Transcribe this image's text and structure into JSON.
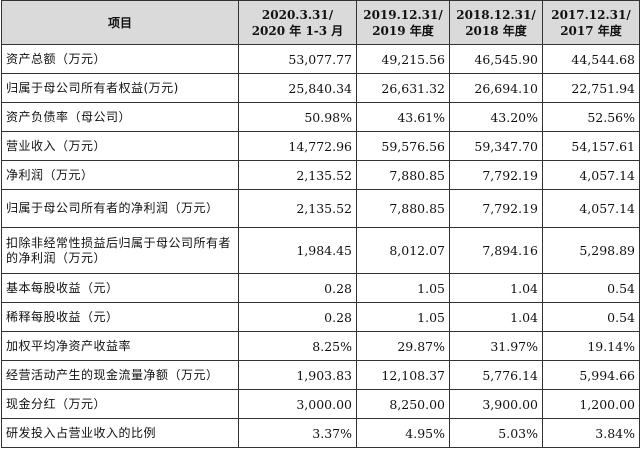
{
  "table": {
    "headers": [
      [
        "项目"
      ],
      [
        "2020.3.31/",
        "2020 年 1-3 月"
      ],
      [
        "2019.12.31/",
        "2019 年度"
      ],
      [
        "2018.12.31/",
        "2018 年度"
      ],
      [
        "2017.12.31/",
        "2017 年度"
      ]
    ],
    "rows": [
      {
        "label": "资产总额（万元）",
        "values": [
          "53,077.77",
          "49,215.56",
          "46,545.90",
          "44,544.68"
        ]
      },
      {
        "label": "归属于母公司所有者权益(万元)",
        "values": [
          "25,840.34",
          "26,631.32",
          "26,694.10",
          "22,751.94"
        ]
      },
      {
        "label": "资产负债率（母公司）",
        "values": [
          "50.98%",
          "43.61%",
          "43.20%",
          "52.56%"
        ]
      },
      {
        "label": "营业收入（万元）",
        "values": [
          "14,772.96",
          "59,576.56",
          "59,347.70",
          "54,157.61"
        ]
      },
      {
        "label": "净利润（万元）",
        "values": [
          "2,135.52",
          "7,880.85",
          "7,792.19",
          "4,057.14"
        ]
      },
      {
        "label": "归属于母公司所有者的净利润（万元）",
        "values": [
          "2,135.52",
          "7,880.85",
          "7,792.19",
          "4,057.14"
        ]
      },
      {
        "label": "扣除非经常性损益后归属于母公司所有者的净利润（万元）",
        "values": [
          "1,984.45",
          "8,012.07",
          "7,894.16",
          "5,298.89"
        ]
      },
      {
        "label": "基本每股收益（元）",
        "values": [
          "0.28",
          "1.05",
          "1.04",
          "0.54"
        ]
      },
      {
        "label": "稀释每股收益（元）",
        "values": [
          "0.28",
          "1.05",
          "1.04",
          "0.54"
        ]
      },
      {
        "label": "加权平均净资产收益率",
        "values": [
          "8.25%",
          "29.87%",
          "31.97%",
          "19.14%"
        ]
      },
      {
        "label": "经营活动产生的现金流量净额（万元）",
        "values": [
          "1,903.83",
          "12,108.37",
          "5,776.14",
          "5,994.66"
        ]
      },
      {
        "label": "现金分红（万元）",
        "values": [
          "3,000.00",
          "8,250.00",
          "3,900.00",
          "1,200.00"
        ]
      },
      {
        "label": "研发投入占营业收入的比例",
        "values": [
          "3.37%",
          "4.95%",
          "5.03%",
          "3.84%"
        ]
      }
    ]
  }
}
